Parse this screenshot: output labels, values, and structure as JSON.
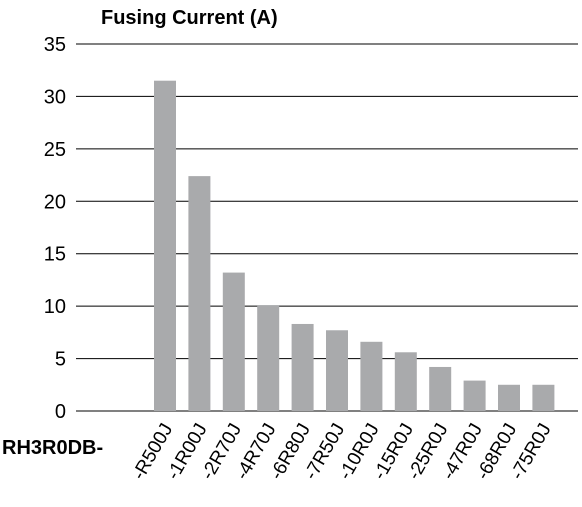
{
  "chart_data": {
    "type": "bar",
    "title": "Fusing Current (A)",
    "x_prefix": "RH3R0DB-",
    "categories": [
      "-R500J",
      "-1R00J",
      "-2R70J",
      "-4R70J",
      "-6R80J",
      "-7R50J",
      "-10R0J",
      "-15R0J",
      "-25R0J",
      "-47R0J",
      "-68R0J",
      "-75R0J"
    ],
    "values": [
      31.5,
      22.4,
      13.2,
      10.1,
      8.3,
      7.7,
      6.6,
      5.6,
      4.2,
      2.9,
      2.5,
      2.5
    ],
    "ylim": [
      0,
      35
    ],
    "yticks": [
      0,
      5,
      10,
      15,
      20,
      25,
      30,
      35
    ],
    "grid": true,
    "bar_color": "#a9aaac"
  }
}
